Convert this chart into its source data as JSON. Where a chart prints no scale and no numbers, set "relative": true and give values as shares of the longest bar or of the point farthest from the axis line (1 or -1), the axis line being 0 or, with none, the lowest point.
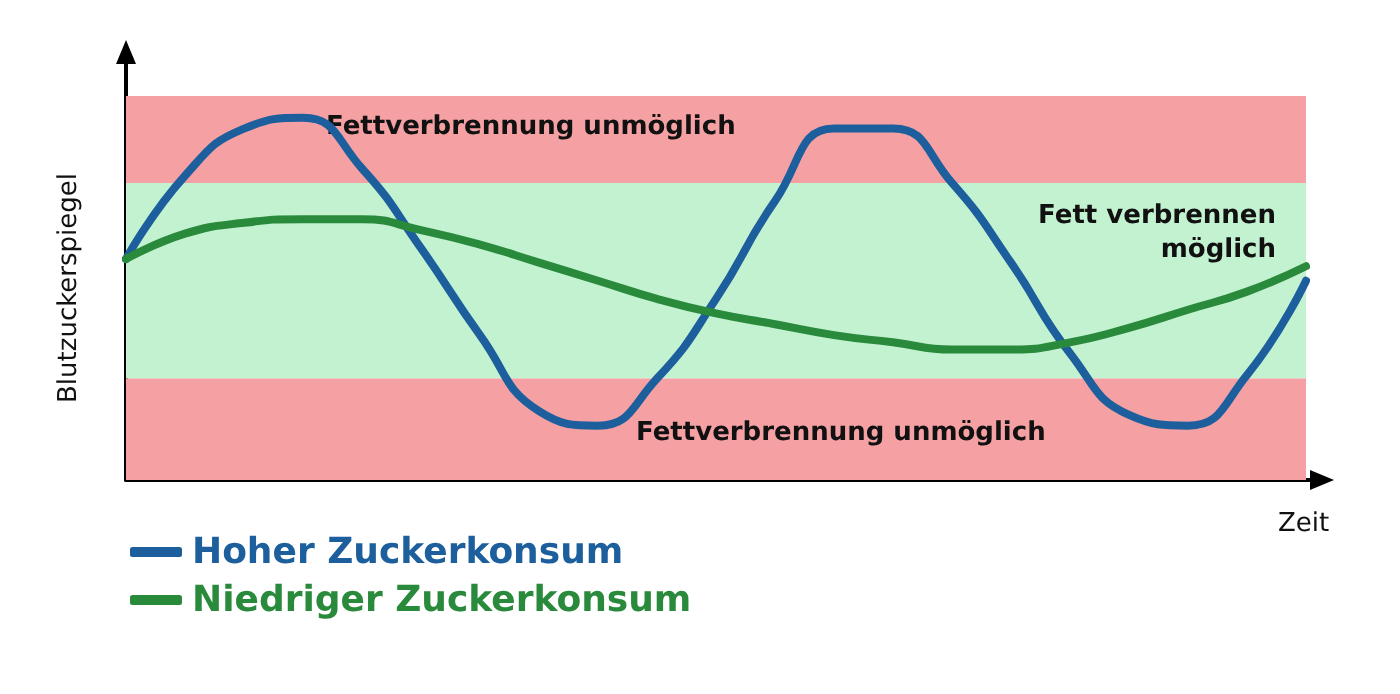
{
  "chart_data": {
    "type": "line",
    "relative": true,
    "xlabel": "Zeit",
    "ylabel": "Blutzuckerspiegel",
    "categories": [
      null,
      null,
      null,
      null,
      null,
      null,
      null,
      null,
      null,
      null,
      null,
      null,
      null,
      null,
      null,
      null,
      null,
      null,
      null,
      null,
      null
    ],
    "series": [
      {
        "name": "Hoher Zuckerkonsum",
        "color": "#1d5f9c",
        "values": [
          0.61,
          0.84,
          0.97,
          1.0,
          0.86,
          0.64,
          0.4,
          0.19,
          0.15,
          0.28,
          0.5,
          0.77,
          0.97,
          0.97,
          0.82,
          0.6,
          0.35,
          0.18,
          0.15,
          0.29,
          0.55
        ]
      },
      {
        "name": "Niedriger Zuckerkonsum",
        "color": "#2a8a3c",
        "values": [
          0.61,
          0.68,
          0.71,
          0.72,
          0.72,
          0.69,
          0.65,
          0.6,
          0.55,
          0.5,
          0.46,
          0.43,
          0.4,
          0.38,
          0.36,
          0.36,
          0.38,
          0.42,
          0.47,
          0.52,
          0.59
        ]
      }
    ],
    "bands": [
      {
        "axis": "y",
        "from": 0.82,
        "to": 1.06,
        "label": "Fettverbrennung unmöglich",
        "color": "#f5a1a4"
      },
      {
        "axis": "y",
        "from": 0.28,
        "to": 0.82,
        "label": "Fett verbrennen möglich",
        "color": "#c3f2d1"
      },
      {
        "axis": "y",
        "from": 0,
        "to": 0.28,
        "label": "Fettverbrennung unmöglich",
        "color": "#f5a1a4"
      }
    ],
    "grid": false,
    "legend": "bottom left",
    "marker": "none",
    "line_style": "solid"
  }
}
